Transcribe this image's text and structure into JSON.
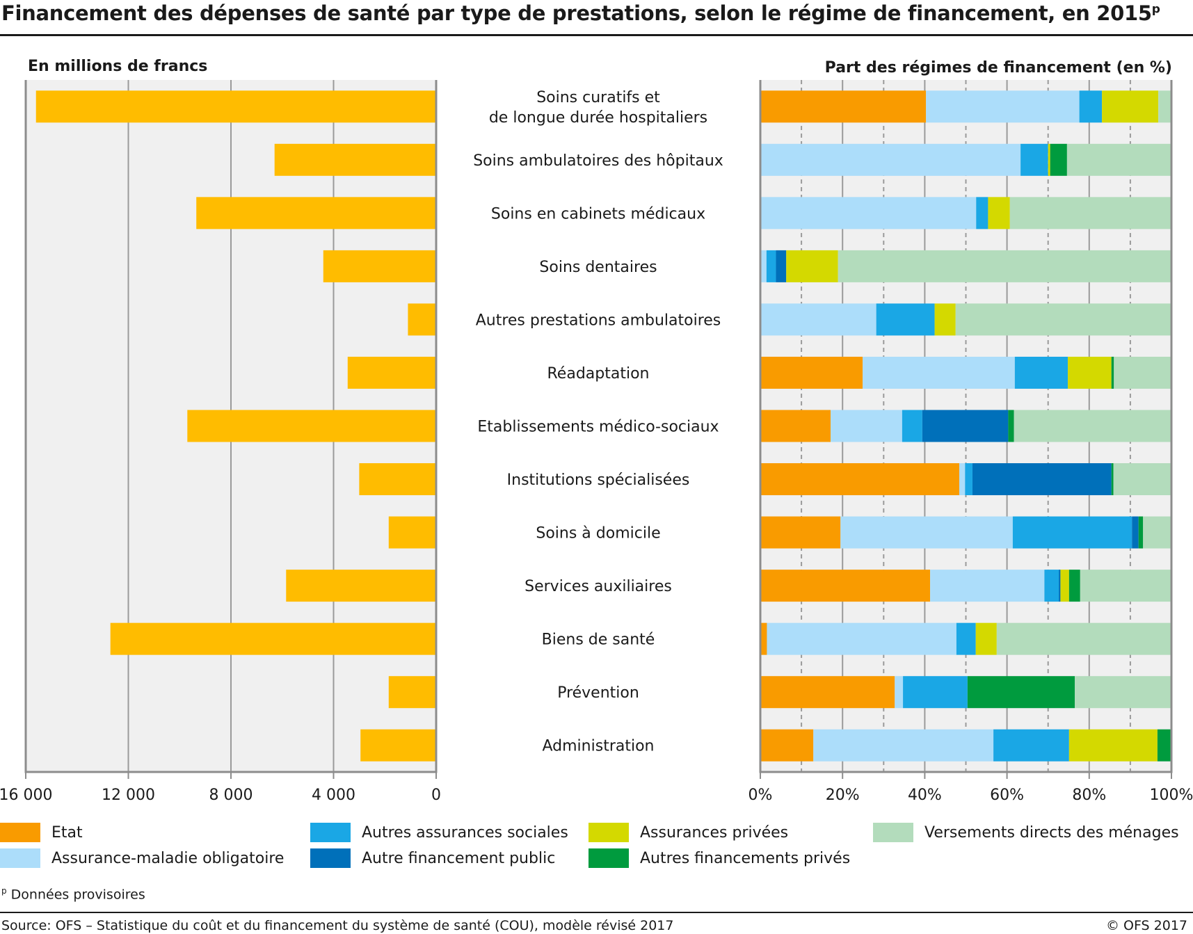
{
  "title": "Financement des dépenses de santé par type de prestations, selon le régime de financement, en 2015",
  "title_superscript": "p",
  "note_marker": "p",
  "note_text": "Données provisoires",
  "source": "Source: OFS – Statistique du coût et du financement du système de santé (COU), modèle révisé 2017",
  "copyright": "© OFS 2017",
  "chart_data": [
    {
      "type": "bar",
      "orientation": "horizontal",
      "direction": "right-to-left",
      "ylabel": "En millions de francs",
      "categories": [
        "Soins curatifs et de longue durée hospitaliers",
        "Soins ambulatoires des hôpitaux",
        "Soins en cabinets médicaux",
        "Soins dentaires",
        "Autres prestations ambulatoires",
        "Réadaptation",
        "Etablissements médico-sociaux",
        "Institutions spécialisées",
        "Soins à domicile",
        "Services auxiliaires",
        "Biens de santé",
        "Prévention",
        "Administration"
      ],
      "category_lines": [
        [
          "Soins curatifs et",
          "de longue durée hospitaliers"
        ],
        [
          "Soins ambulatoires des hôpitaux"
        ],
        [
          "Soins en cabinets médicaux"
        ],
        [
          "Soins dentaires"
        ],
        [
          "Autres prestations ambulatoires"
        ],
        [
          "Réadaptation"
        ],
        [
          "Etablissements médico-sociaux"
        ],
        [
          "Institutions spécialisées"
        ],
        [
          "Soins à domicile"
        ],
        [
          "Services auxiliaires"
        ],
        [
          "Biens de santé"
        ],
        [
          "Prévention"
        ],
        [
          "Administration"
        ]
      ],
      "values": [
        15600,
        6300,
        9350,
        4400,
        1100,
        3450,
        9700,
        3000,
        1850,
        5850,
        12700,
        1850,
        2950
      ],
      "xlim": [
        0,
        16000
      ],
      "ticks": [
        16000,
        12000,
        8000,
        4000,
        0
      ],
      "tick_labels": [
        "16 000",
        "12 000",
        "8 000",
        "4 000",
        "0"
      ],
      "grid": true,
      "color": "#FFBC00"
    },
    {
      "type": "bar",
      "orientation": "horizontal",
      "stacked": true,
      "normalized": true,
      "ylabel": "Part des régimes de financement (en %)",
      "xlim": [
        0,
        100
      ],
      "ticks": [
        0,
        20,
        40,
        60,
        80,
        100
      ],
      "tick_labels": [
        "0%",
        "20%",
        "40%",
        "60%",
        "80%",
        "100%"
      ],
      "grid": true,
      "legend_position": "bottom",
      "series": [
        {
          "name": "Etat",
          "color": "#F99B00",
          "values": [
            40.3,
            0,
            0,
            0,
            0,
            24.9,
            17.1,
            48.4,
            19.5,
            41.3,
            1.6,
            32.7,
            12.9
          ]
        },
        {
          "name": "Assurance-maladie obligatoire",
          "color": "#ACDDFA",
          "values": [
            37.3,
            63.3,
            52.5,
            1.5,
            28.2,
            37.0,
            17.4,
            1.4,
            41.9,
            27.8,
            46.1,
            2.0,
            43.8
          ]
        },
        {
          "name": "Autres assurances sociales",
          "color": "#1AA7E5",
          "values": [
            5.5,
            6.7,
            2.9,
            2.3,
            14.2,
            12.9,
            4.9,
            1.8,
            29.0,
            3.5,
            4.7,
            15.7,
            18.4
          ]
        },
        {
          "name": "Autre financement public",
          "color": "#0070BA",
          "values": [
            0,
            0,
            0,
            2.5,
            0,
            0,
            20.9,
            33.8,
            1.6,
            0.4,
            0,
            0,
            0
          ]
        },
        {
          "name": "Assurances privées",
          "color": "#D4D900",
          "values": [
            13.7,
            0.5,
            5.3,
            12.6,
            5.1,
            10.6,
            0,
            0,
            0,
            2.1,
            5.1,
            0,
            21.5
          ]
        },
        {
          "name": "Autres financements privés",
          "color": "#009B3E",
          "values": [
            0,
            4.1,
            0,
            0,
            0,
            0.6,
            1.4,
            0.5,
            1.1,
            2.7,
            0,
            26.1,
            3.4
          ]
        },
        {
          "name": "Versements directs des ménages",
          "color": "#B3DCBC",
          "values": [
            3.2,
            25.4,
            39.3,
            81.1,
            52.5,
            14.0,
            38.3,
            14.1,
            6.9,
            22.2,
            42.5,
            23.5,
            0
          ]
        }
      ]
    }
  ]
}
